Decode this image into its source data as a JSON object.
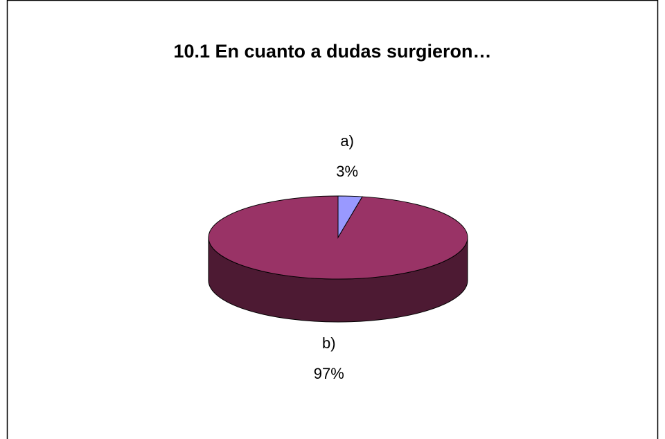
{
  "chart_data": {
    "type": "pie",
    "title": "10.1 En cuanto a dudas surgieron…",
    "categories": [
      "a)",
      "b)"
    ],
    "values": [
      3,
      97
    ],
    "value_labels": [
      "3%",
      "97%"
    ],
    "colors": [
      "#9999ff",
      "#993366"
    ],
    "three_d": true
  }
}
